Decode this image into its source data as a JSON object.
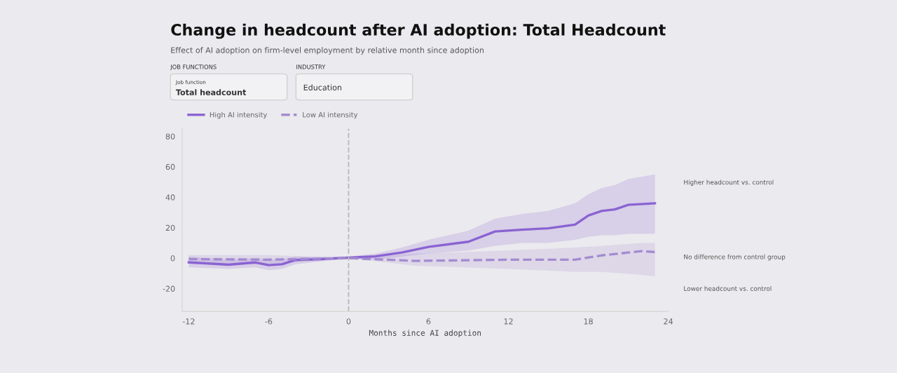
{
  "chart_data": {
    "type": "line",
    "title": "Change in headcount after AI adoption: Total Headcount",
    "subtitle": "Effect of AI adoption on firm-level employment by relative month since adoption",
    "annotations": [
      "JOB FUNCTIONS",
      "Job function",
      "Total headcount",
      "INDUSTRY",
      "Education",
      "Higher headcount vs. control",
      "No difference from control group",
      "Lower headcount vs. control"
    ],
    "xlabel": "Months since AI adoption",
    "xlim": [
      -12.5,
      24
    ],
    "xticks": [
      -12,
      -6,
      0,
      6,
      12,
      18,
      24
    ],
    "ylim": [
      -35,
      85
    ],
    "yticks": [
      -20,
      0,
      20,
      40,
      60,
      80
    ],
    "series": [
      {
        "name": "High AI intensity",
        "color": "#8a63d2",
        "line_style": "solid",
        "x": [
          -12,
          -9,
          -7,
          -6,
          -5,
          -4,
          -2,
          0,
          2,
          4,
          6,
          9,
          11,
          13,
          15,
          17,
          18,
          19,
          20,
          21,
          23
        ],
        "values": [
          -2.8,
          -4.3,
          -2.8,
          -4.6,
          -4,
          -1.2,
          -0.6,
          0.3,
          1.2,
          3.7,
          7.4,
          10.8,
          17.5,
          18.7,
          19.6,
          22,
          28,
          31,
          32,
          35,
          36
        ],
        "lower": [
          -6,
          -7,
          -6,
          -8,
          -7,
          -4,
          -2,
          0,
          -1,
          1,
          3,
          5,
          8,
          10,
          10,
          12,
          14,
          15,
          15,
          16,
          16
        ],
        "upper": [
          1,
          -1,
          0,
          -1,
          -1,
          1,
          1,
          1,
          3,
          7,
          12,
          18,
          26,
          29,
          31,
          36,
          42,
          46,
          48,
          52,
          55
        ]
      },
      {
        "name": "Low AI intensity",
        "color": "#a48bd0",
        "line_style": "dashed",
        "x": [
          -12,
          -6,
          0,
          5,
          12,
          17,
          19,
          22,
          23
        ],
        "values": [
          -0.6,
          -1,
          0,
          -1.8,
          -1,
          -1,
          1.8,
          4.6,
          4
        ],
        "lower": [
          -4,
          -4,
          0,
          -5,
          -7,
          -9,
          -9,
          -11,
          -12
        ],
        "upper": [
          2,
          2,
          0,
          3,
          5,
          7,
          8,
          10,
          10
        ]
      }
    ],
    "ref_lines": [
      {
        "axis": "x",
        "value": 0,
        "color": "#bbbbbb",
        "line_style": "dashed"
      }
    ],
    "legend": "top left",
    "grid": false,
    "marker": "none"
  }
}
